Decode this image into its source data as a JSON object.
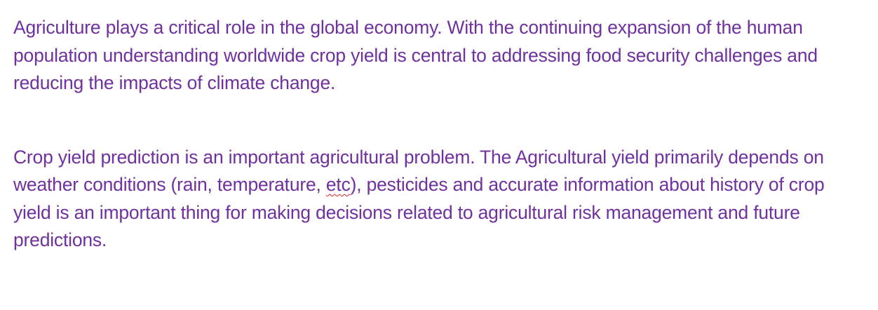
{
  "document": {
    "paragraphs": [
      {
        "text": "Agriculture plays a critical role in the global economy. With the continuing expansion of the human population understanding worldwide crop yield is central to addressing food security challenges and reducing the impacts of climate change."
      },
      {
        "before": "Crop yield prediction is an important agricultural problem. The Agricultural yield primarily depends on weather conditions (rain, temperature, ",
        "misspelled": "etc",
        "after": "), pesticides and accurate information about history of crop yield is an important thing for making decisions related to agricultural risk management and future predictions."
      }
    ]
  },
  "colors": {
    "text": "#7030a0",
    "spellcheck_underline": "#e02020",
    "background": "#ffffff"
  }
}
